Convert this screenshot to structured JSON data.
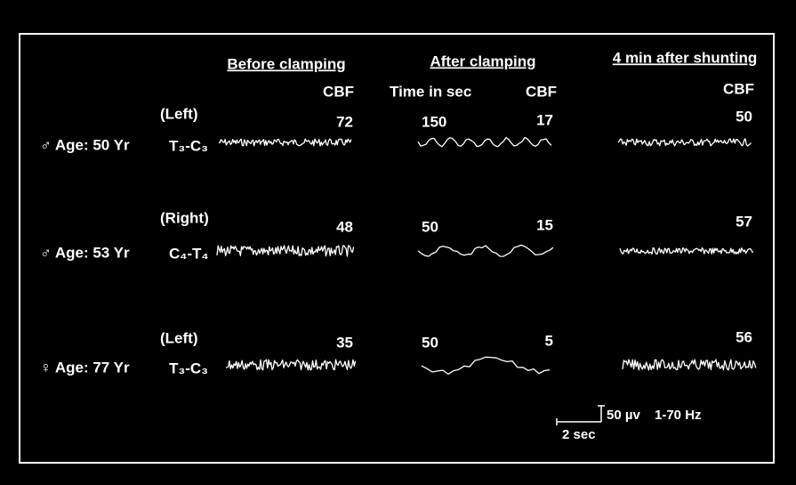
{
  "headers": [
    "Before clamping",
    "After clamping",
    "4 min after shunting"
  ],
  "column_labels": {
    "before_cbf": "CBF",
    "time": "Time in sec",
    "after_cbf": "CBF",
    "shunt_cbf": "CBF"
  },
  "rows": [
    {
      "subject": "♂ Age: 50 Yr",
      "side": "(Left)",
      "lead": "T₃-C₃",
      "before_cbf": 72,
      "time": 150,
      "after_cbf": 17,
      "shunt_cbf": 50
    },
    {
      "subject": "♂ Age: 53 Yr",
      "side": "(Right)",
      "lead": "C₄-T₄",
      "before_cbf": 48,
      "time": 50,
      "after_cbf": 15,
      "shunt_cbf": 57
    },
    {
      "subject": "♀ Age: 77 Yr",
      "side": "(Left)",
      "lead": "T₃-C₃",
      "before_cbf": 35,
      "time": 50,
      "after_cbf": 5,
      "shunt_cbf": 56
    }
  ],
  "scale": {
    "amplitude": "50 µv",
    "filter": "1-70 Hz",
    "time": "2 sec"
  }
}
